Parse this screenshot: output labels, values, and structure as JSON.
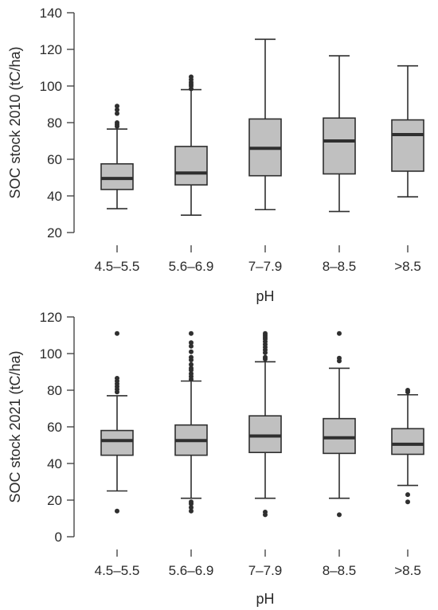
{
  "colors": {
    "box_fill": "#c0c0c0",
    "stroke": "#2f2f2f"
  },
  "chart_data": [
    {
      "type": "boxplot",
      "xlabel": "pH",
      "ylabel": "SOC stock 2010 (tC/ha)",
      "ylim": [
        20,
        140
      ],
      "yticks": [
        20,
        40,
        60,
        80,
        100,
        120,
        140
      ],
      "grid": false,
      "categories": [
        "4.5–5.5",
        "5.6–6.9",
        "7–7.9",
        "8–8.5",
        ">8.5"
      ],
      "boxes": [
        {
          "whisker_low": 33,
          "q1": 43.5,
          "median": 49.5,
          "q3": 57.5,
          "whisker_high": 76.5,
          "outliers": [
            78,
            79,
            80,
            85,
            87,
            89
          ]
        },
        {
          "whisker_low": 29.5,
          "q1": 46,
          "median": 52.5,
          "q3": 67,
          "whisker_high": 98,
          "outliers": [
            98.5,
            100,
            101,
            102,
            103.5,
            105
          ]
        },
        {
          "whisker_low": 32.5,
          "q1": 51,
          "median": 66,
          "q3": 82,
          "whisker_high": 125.5,
          "outliers": []
        },
        {
          "whisker_low": 31.5,
          "q1": 52,
          "median": 70,
          "q3": 82.5,
          "whisker_high": 116.5,
          "outliers": []
        },
        {
          "whisker_low": 39.5,
          "q1": 53.5,
          "median": 73.5,
          "q3": 81.5,
          "whisker_high": 111,
          "outliers": []
        }
      ]
    },
    {
      "type": "boxplot",
      "xlabel": "pH",
      "ylabel": "SOC stock 2021 (tC/ha)",
      "ylim": [
        0,
        120
      ],
      "yticks": [
        0,
        20,
        40,
        60,
        80,
        100,
        120
      ],
      "grid": false,
      "categories": [
        "4.5–5.5",
        "5.6–6.9",
        "7–7.9",
        "8–8.5",
        ">8.5"
      ],
      "boxes": [
        {
          "whisker_low": 25,
          "q1": 44.5,
          "median": 52.5,
          "q3": 58,
          "whisker_high": 77,
          "outliers": [
            14,
            79,
            80.5,
            82,
            83.5,
            85,
            86.5,
            111
          ]
        },
        {
          "whisker_low": 21,
          "q1": 44.5,
          "median": 52.5,
          "q3": 61,
          "whisker_high": 85,
          "outliers": [
            14,
            16,
            18,
            19,
            86,
            87.5,
            89,
            91,
            92,
            94,
            96.5,
            98,
            101,
            104,
            106,
            111
          ]
        },
        {
          "whisker_low": 21,
          "q1": 46,
          "median": 55,
          "q3": 66,
          "whisker_high": 95.5,
          "outliers": [
            12,
            13.5,
            97,
            98,
            100.5,
            102,
            103.5,
            105,
            106.5,
            108,
            109,
            110,
            111
          ]
        },
        {
          "whisker_low": 21,
          "q1": 45.5,
          "median": 54,
          "q3": 64.5,
          "whisker_high": 92,
          "outliers": [
            12,
            96,
            97.5,
            111
          ]
        },
        {
          "whisker_low": 28,
          "q1": 45,
          "median": 50.5,
          "q3": 59,
          "whisker_high": 77.5,
          "outliers": [
            19,
            23,
            79,
            80
          ]
        }
      ]
    }
  ]
}
